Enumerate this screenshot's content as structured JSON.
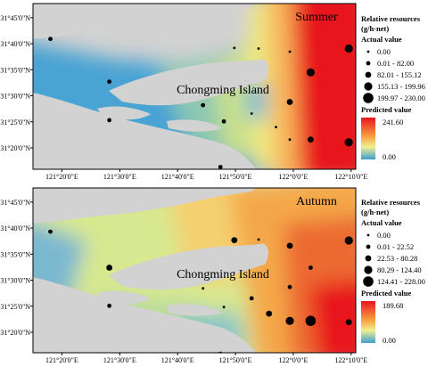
{
  "axes": {
    "lat_labels": [
      "31°45'0\"N",
      "31°40'0\"N",
      "31°35'0\"N",
      "31°30'0\"N",
      "31°25'0\"N",
      "31°20'0\"N"
    ],
    "lon_labels": [
      "121°20'0\"E",
      "121°30'0\"E",
      "121°40'0\"E",
      "121°50'0\"E",
      "122°0'0\"E",
      "122°10'0\"E"
    ]
  },
  "panels": [
    {
      "season": "Summer",
      "island_label": "Chongming Island",
      "legend": {
        "title_line1": "Relative resources",
        "title_line2": "(g/h·net)",
        "actual_heading": "Actual value",
        "classes": [
          "0.00",
          "0.01 - 82.00",
          "82.01 - 155.12",
          "155.13 - 199.96",
          "199.97 - 230.00"
        ],
        "predicted_heading": "Predicted value",
        "predicted_max": "241.60",
        "predicted_min": "0.00"
      },
      "stations": [
        {
          "lon": 121.3,
          "lat": 31.682,
          "cls": 1
        },
        {
          "lon": 121.83,
          "lat": 31.653,
          "cls": 0
        },
        {
          "lon": 121.9,
          "lat": 31.651,
          "cls": 0
        },
        {
          "lon": 121.99,
          "lat": 31.641,
          "cls": 0
        },
        {
          "lon": 122.16,
          "lat": 31.651,
          "cls": 3
        },
        {
          "lon": 121.47,
          "lat": 31.545,
          "cls": 1
        },
        {
          "lon": 122.05,
          "lat": 31.575,
          "cls": 3
        },
        {
          "lon": 121.74,
          "lat": 31.47,
          "cls": 1
        },
        {
          "lon": 121.99,
          "lat": 31.48,
          "cls": 2
        },
        {
          "lon": 121.47,
          "lat": 31.422,
          "cls": 1
        },
        {
          "lon": 121.8,
          "lat": 31.418,
          "cls": 1
        },
        {
          "lon": 121.88,
          "lat": 31.443,
          "cls": 0
        },
        {
          "lon": 121.95,
          "lat": 31.4,
          "cls": 0
        },
        {
          "lon": 121.99,
          "lat": 31.36,
          "cls": 0
        },
        {
          "lon": 122.05,
          "lat": 31.36,
          "cls": 2
        },
        {
          "lon": 122.16,
          "lat": 31.351,
          "cls": 3
        },
        {
          "lon": 121.79,
          "lat": 31.272,
          "cls": 1
        }
      ]
    },
    {
      "season": "Autumn",
      "island_label": "Chongming Island",
      "legend": {
        "title_line1": "Relative resources",
        "title_line2": "(g/h·net)",
        "actual_heading": "Actual value",
        "classes": [
          "0.00",
          "0.01 - 22.52",
          "22.53 - 80.28",
          "80.29 - 124.40",
          "124.41 - 228.00"
        ],
        "predicted_heading": "Predicted value",
        "predicted_max": "189.68",
        "predicted_min": "0.00"
      },
      "stations": [
        {
          "lon": 121.3,
          "lat": 31.655,
          "cls": 1
        },
        {
          "lon": 121.83,
          "lat": 31.628,
          "cls": 2
        },
        {
          "lon": 121.9,
          "lat": 31.63,
          "cls": 0
        },
        {
          "lon": 121.99,
          "lat": 31.61,
          "cls": 2
        },
        {
          "lon": 122.16,
          "lat": 31.627,
          "cls": 3
        },
        {
          "lon": 121.47,
          "lat": 31.54,
          "cls": 2
        },
        {
          "lon": 122.05,
          "lat": 31.54,
          "cls": 1
        },
        {
          "lon": 121.74,
          "lat": 31.474,
          "cls": 0
        },
        {
          "lon": 121.99,
          "lat": 31.478,
          "cls": 1
        },
        {
          "lon": 121.47,
          "lat": 31.418,
          "cls": 1
        },
        {
          "lon": 121.8,
          "lat": 31.414,
          "cls": 0
        },
        {
          "lon": 121.88,
          "lat": 31.442,
          "cls": 1
        },
        {
          "lon": 121.93,
          "lat": 31.393,
          "cls": 2
        },
        {
          "lon": 121.99,
          "lat": 31.37,
          "cls": 3
        },
        {
          "lon": 122.05,
          "lat": 31.37,
          "cls": 4
        },
        {
          "lon": 122.16,
          "lat": 31.366,
          "cls": 2
        },
        {
          "lon": 121.79,
          "lat": 31.262,
          "cls": 2
        }
      ]
    }
  ]
}
